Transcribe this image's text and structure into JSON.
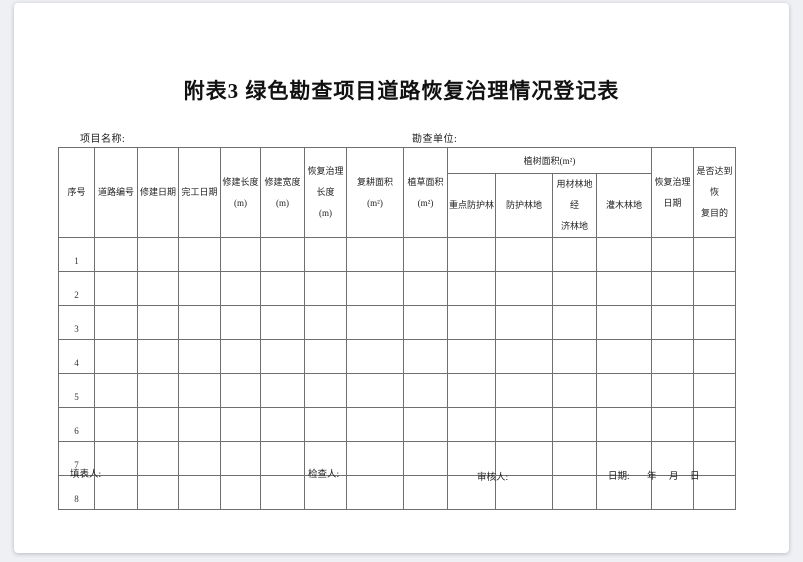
{
  "page": {
    "title": "附表3 绿色勘查项目道路恢复治理情况登记表",
    "project_name_label": "项目名称:",
    "survey_unit_label": "勘查单位:"
  },
  "table": {
    "headers": [
      "序号",
      "道路编号",
      "修建日期",
      "完工日期",
      "修建长度\n(m)",
      "修建宽度\n(m)",
      "恢复治理\n长度\n(m)",
      "复耕面积\n(m²)",
      "植草面积\n(m²)"
    ],
    "tree_group": {
      "label": "植树面积(m²)",
      "children": [
        "重点防护林",
        "防护林地",
        "用材林地经\n济林地",
        "灌木林地"
      ]
    },
    "trailing_headers": [
      "恢复治理\n日期",
      "是否达到恢\n复目的"
    ],
    "rows": [
      "1",
      "2",
      "3",
      "4",
      "5",
      "6",
      "7",
      "8"
    ]
  },
  "footer": {
    "filler_label": "填表人:",
    "inspector_label": "检查人:",
    "reviewer_label": "审核人:",
    "date_label": "日期:",
    "year_label": "年",
    "month_label": "月",
    "day_label": "日"
  }
}
